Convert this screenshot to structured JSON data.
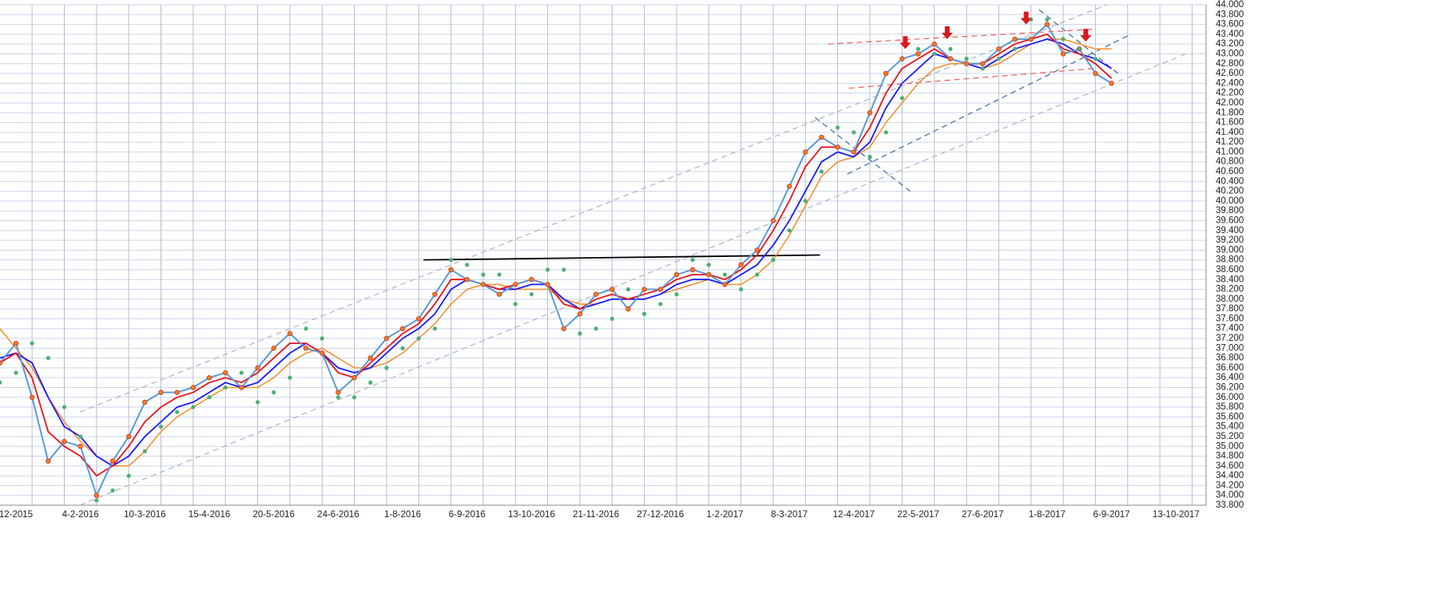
{
  "chart_data": {
    "type": "line",
    "categories": [
      null,
      "12-2015",
      null,
      null,
      null,
      "4-2-2016",
      null,
      null,
      null,
      "10-3-2016",
      null,
      null,
      null,
      "15-4-2016",
      null,
      null,
      null,
      "20-5-2016",
      null,
      null,
      null,
      "24-6-2016",
      null,
      null,
      null,
      "1-8-2016",
      null,
      null,
      null,
      "6-9-2016",
      null,
      null,
      null,
      "13-10-2016",
      null,
      null,
      null,
      "21-11-2016",
      null,
      null,
      null,
      "27-12-2016",
      null,
      null,
      null,
      "1-2-2017",
      null,
      null,
      null,
      "8-3-2017",
      null,
      null,
      null,
      "12-4-2017",
      null,
      null,
      null,
      "22-5-2017",
      null,
      null,
      null,
      "27-6-2017",
      null,
      null,
      null,
      "1-8-2017",
      null,
      null,
      null,
      "6-9-2017",
      null,
      null,
      null,
      "13-10-2017",
      null
    ],
    "series": [
      {
        "color": "#f28e2b",
        "style": "line",
        "width": 1.5,
        "values": [
          37.4,
          37.0,
          36.6,
          36.0,
          35.5,
          35.1,
          34.8,
          34.6,
          34.6,
          34.9,
          35.3,
          35.6,
          35.8,
          36.0,
          36.2,
          36.2,
          36.2,
          36.4,
          36.7,
          36.9,
          37.0,
          36.8,
          36.6,
          36.6,
          36.7,
          36.9,
          37.2,
          37.5,
          37.9,
          38.2,
          38.3,
          38.3,
          38.2,
          38.2,
          38.2,
          38.0,
          37.9,
          37.9,
          38.0,
          38.0,
          38.0,
          38.1,
          38.2,
          38.3,
          38.4,
          38.3,
          38.3,
          38.5,
          38.8,
          39.3,
          39.9,
          40.5,
          40.8,
          40.9,
          41.1,
          41.6,
          42.0,
          42.4,
          42.7,
          42.8,
          42.8,
          42.7,
          42.8,
          43.0,
          43.2,
          43.3,
          43.3,
          43.2,
          43.1,
          43.1,
          null,
          null,
          null,
          null,
          null
        ]
      },
      {
        "color": "#1a1aff",
        "style": "line",
        "width": 1.8,
        "values": [
          36.8,
          36.9,
          36.7,
          36.0,
          35.4,
          35.2,
          34.8,
          34.6,
          34.8,
          35.2,
          35.5,
          35.8,
          35.9,
          36.1,
          36.3,
          36.2,
          36.3,
          36.6,
          36.9,
          37.1,
          36.9,
          36.6,
          36.5,
          36.6,
          36.9,
          37.2,
          37.4,
          37.7,
          38.2,
          38.4,
          38.3,
          38.2,
          38.2,
          38.3,
          38.3,
          38.0,
          37.8,
          37.9,
          38.0,
          38.0,
          38.0,
          38.1,
          38.3,
          38.4,
          38.4,
          38.3,
          38.5,
          38.7,
          39.1,
          39.6,
          40.2,
          40.8,
          41.0,
          40.9,
          41.2,
          41.9,
          42.4,
          42.7,
          43.0,
          42.9,
          42.8,
          42.7,
          42.9,
          43.1,
          43.2,
          43.3,
          43.2,
          43.0,
          42.9,
          42.7,
          null,
          null,
          null,
          null,
          null
        ]
      },
      {
        "color": "#e8141b",
        "style": "line",
        "width": 1.8,
        "values": [
          36.7,
          36.9,
          36.4,
          35.3,
          35.0,
          34.8,
          34.4,
          34.6,
          35.0,
          35.5,
          35.8,
          36.0,
          36.1,
          36.3,
          36.4,
          36.3,
          36.5,
          36.8,
          37.1,
          37.1,
          36.9,
          36.5,
          36.4,
          36.7,
          37.0,
          37.3,
          37.5,
          37.9,
          38.4,
          38.4,
          38.3,
          38.2,
          38.3,
          38.4,
          38.3,
          37.9,
          37.8,
          38.0,
          38.1,
          38.0,
          38.1,
          38.2,
          38.4,
          38.5,
          38.5,
          38.4,
          38.6,
          38.9,
          39.4,
          40.0,
          40.7,
          41.1,
          41.1,
          41.0,
          41.5,
          42.2,
          42.7,
          42.9,
          43.1,
          42.9,
          42.8,
          42.8,
          43.0,
          43.2,
          43.3,
          43.4,
          43.1,
          43.0,
          42.8,
          42.5,
          null,
          null,
          null,
          null,
          null
        ]
      },
      {
        "color": "#5b9bd5",
        "marker_color": "#f47b20",
        "style": "line-markers",
        "width": 2,
        "values": [
          36.7,
          37.1,
          36.0,
          34.7,
          35.1,
          35.0,
          34.0,
          34.7,
          35.2,
          35.9,
          36.1,
          36.1,
          36.2,
          36.4,
          36.5,
          36.2,
          36.6,
          37.0,
          37.3,
          37.0,
          36.9,
          36.1,
          36.4,
          36.8,
          37.2,
          37.4,
          37.6,
          38.1,
          38.6,
          38.4,
          38.3,
          38.1,
          38.3,
          38.4,
          38.3,
          37.4,
          37.7,
          38.1,
          38.2,
          37.8,
          38.2,
          38.2,
          38.5,
          38.6,
          38.5,
          38.3,
          38.7,
          39.0,
          39.6,
          40.3,
          41.0,
          41.3,
          41.1,
          41.0,
          41.8,
          42.6,
          42.9,
          43.0,
          43.2,
          42.9,
          42.8,
          42.8,
          43.1,
          43.3,
          43.3,
          43.6,
          43.0,
          43.1,
          42.6,
          42.4,
          null,
          null,
          null,
          null,
          null
        ]
      },
      {
        "color": "#4caf74",
        "style": "dots",
        "values": [
          36.3,
          36.5,
          37.1,
          36.8,
          35.8,
          35.2,
          33.9,
          34.1,
          34.4,
          34.9,
          35.4,
          35.7,
          35.8,
          36.0,
          36.2,
          36.5,
          35.9,
          36.1,
          36.4,
          37.4,
          37.2,
          36.0,
          36.0,
          36.3,
          36.6,
          37.0,
          37.2,
          37.4,
          38.8,
          38.7,
          38.5,
          38.5,
          37.9,
          38.1,
          38.6,
          38.6,
          37.3,
          37.4,
          37.6,
          38.2,
          37.7,
          37.9,
          38.1,
          38.8,
          38.7,
          38.5,
          38.2,
          38.5,
          38.8,
          39.4,
          40.0,
          40.6,
          41.5,
          41.4,
          40.9,
          41.4,
          42.1,
          43.1,
          43.0,
          43.1,
          42.9,
          42.7,
          42.9,
          43.1,
          43.7,
          43.7,
          43.3,
          43.1,
          42.9,
          null,
          null,
          null,
          null,
          null,
          null
        ]
      }
    ],
    "trendlines": [
      {
        "x": [
          4.97,
          68.7
        ],
        "y": [
          35.7,
          44.0
        ],
        "color": "#b0b4bc",
        "dash": true
      },
      {
        "x": [
          4.97,
          73.6
        ],
        "y": [
          33.8,
          43.0
        ],
        "color": "#b0b4bc",
        "dash": true
      },
      {
        "x": [
          26.3,
          50.9
        ],
        "y": [
          38.8,
          38.9
        ],
        "color": "#000000",
        "dash": false
      },
      {
        "x": [
          51.4,
          67.9
        ],
        "y": [
          43.2,
          43.5
        ],
        "color": "#f05a5a",
        "dash": true
      },
      {
        "x": [
          52.7,
          67.9
        ],
        "y": [
          42.3,
          42.7
        ],
        "color": "#f05a5a",
        "dash": true
      },
      {
        "x": [
          52.6,
          70.2
        ],
        "y": [
          40.55,
          43.4
        ],
        "color": "#3f6a9a",
        "dash": true
      },
      {
        "x": [
          50.6,
          56.5
        ],
        "y": [
          41.7,
          40.2
        ],
        "color": "#3f6a9a",
        "dash": true
      },
      {
        "x": [
          64.5,
          69.4
        ],
        "y": [
          43.9,
          42.6
        ],
        "color": "#3f6a9a",
        "dash": true
      }
    ],
    "arrows": {
      "color": "#d7191c",
      "x": [
        56.2,
        58.8,
        63.7,
        67.4
      ],
      "y": [
        43.1,
        43.3,
        43.6,
        43.25
      ]
    },
    "ylim": [
      33.8,
      44.0
    ],
    "yticks": [
      {
        "value": 33.8,
        "label": "33.800"
      },
      {
        "value": 34,
        "label": "34.000"
      },
      {
        "value": 34.2,
        "label": "34.200"
      },
      {
        "value": 34.4,
        "label": "34.400"
      },
      {
        "value": 34.6,
        "label": "34.600"
      },
      {
        "value": 34.8,
        "label": "34.800"
      },
      {
        "value": 35,
        "label": "35.000"
      },
      {
        "value": 35.2,
        "label": "35.200"
      },
      {
        "value": 35.4,
        "label": "35.400"
      },
      {
        "value": 35.6,
        "label": "35.600"
      },
      {
        "value": 35.8,
        "label": "35.800"
      },
      {
        "value": 36,
        "label": "36.000"
      },
      {
        "value": 36.2,
        "label": "36.200"
      },
      {
        "value": 36.4,
        "label": "36.400"
      },
      {
        "value": 36.6,
        "label": "36.600"
      },
      {
        "value": 36.8,
        "label": "36.800"
      },
      {
        "value": 37,
        "label": "37.000"
      },
      {
        "value": 37.2,
        "label": "37.200"
      },
      {
        "value": 37.4,
        "label": "37.400"
      },
      {
        "value": 37.6,
        "label": "37.600"
      },
      {
        "value": 37.8,
        "label": "37.800"
      },
      {
        "value": 38,
        "label": "38.000"
      },
      {
        "value": 38.2,
        "label": "38.200"
      },
      {
        "value": 38.4,
        "label": "38.400"
      },
      {
        "value": 38.6,
        "label": "38.600"
      },
      {
        "value": 38.8,
        "label": "38.800"
      },
      {
        "value": 39,
        "label": "39.000"
      },
      {
        "value": 39.2,
        "label": "39.200"
      },
      {
        "value": 39.4,
        "label": "39.400"
      },
      {
        "value": 39.6,
        "label": "39.600"
      },
      {
        "value": 39.8,
        "label": "39.800"
      },
      {
        "value": 40,
        "label": "40.000"
      },
      {
        "value": 40.2,
        "label": "40.200"
      },
      {
        "value": 40.4,
        "label": "40.400"
      },
      {
        "value": 40.6,
        "label": "40.600"
      },
      {
        "value": 40.8,
        "label": "40.800"
      },
      {
        "value": 41,
        "label": "41.000"
      },
      {
        "value": 41.2,
        "label": "41.200"
      },
      {
        "value": 41.4,
        "label": "41.400"
      },
      {
        "value": 41.6,
        "label": "41.600"
      },
      {
        "value": 41.8,
        "label": "41.800"
      },
      {
        "value": 42,
        "label": "42.000"
      },
      {
        "value": 42.2,
        "label": "42.200"
      },
      {
        "value": 42.4,
        "label": "42.400"
      },
      {
        "value": 42.6,
        "label": "42.600"
      },
      {
        "value": 42.8,
        "label": "42.800"
      },
      {
        "value": 43,
        "label": "43.000"
      },
      {
        "value": 43.2,
        "label": "43.200"
      },
      {
        "value": 43.4,
        "label": "43.400"
      },
      {
        "value": 43.6,
        "label": "43.600"
      },
      {
        "value": 43.8,
        "label": "43.800"
      },
      {
        "value": 44,
        "label": "44.000"
      }
    ],
    "grid": true,
    "axis_side": "right"
  }
}
